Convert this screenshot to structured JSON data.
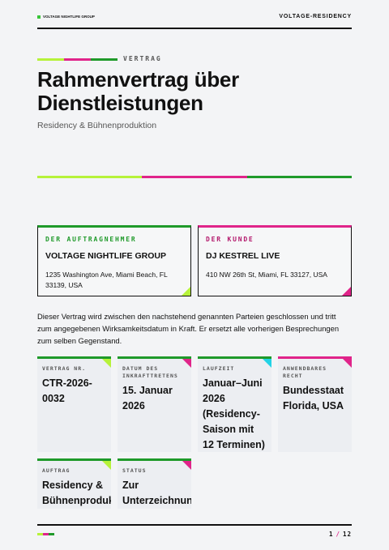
{
  "header": {
    "brand": "VOLTAGE NIGHTLIFE GROUP",
    "code": "VOLTAGE-RESIDENCY"
  },
  "document": {
    "kicker": "VERTRAG",
    "title": "Rahmenvertrag über Dienstleistungen",
    "subtitle": "Residency & Bühnenproduktion"
  },
  "parties": [
    {
      "label": "DER AUFTRAGNEHMER",
      "name": "VOLTAGE NIGHTLIFE GROUP",
      "address": "1235 Washington Ave, Miami Beach, FL 33139, USA"
    },
    {
      "label": "DER KUNDE",
      "name": "DJ KESTREL LIVE",
      "address": "410 NW 26th St, Miami, FL 33127, USA"
    }
  ],
  "intro": "Dieser Vertrag wird zwischen den nachstehend genannten Parteien geschlossen und tritt zum angegebenen Wirksamkeitsdatum in Kraft. Er ersetzt alle vorherigen Besprechungen zum selben Gegenstand.",
  "details": [
    {
      "label": "VERTRAG NR.",
      "value": "CTR-2026-0032"
    },
    {
      "label": "DATUM DES INKRAFTTRETENS",
      "value": "15. Januar 2026"
    },
    {
      "label": "LAUFZEIT",
      "value": "Januar–Juni 2026 (Residency-Saison mit 12 Terminen)"
    },
    {
      "label": "ANWENDBARES RECHT",
      "value": "Bundesstaat Florida, USA"
    },
    {
      "label": "AUFTRAG",
      "value": "Residency & Bühnenproduktion"
    },
    {
      "label": "STATUS",
      "value": "Zur Unterzeichnung"
    }
  ],
  "footer": {
    "page": "1",
    "separator": "/",
    "total": "12"
  }
}
